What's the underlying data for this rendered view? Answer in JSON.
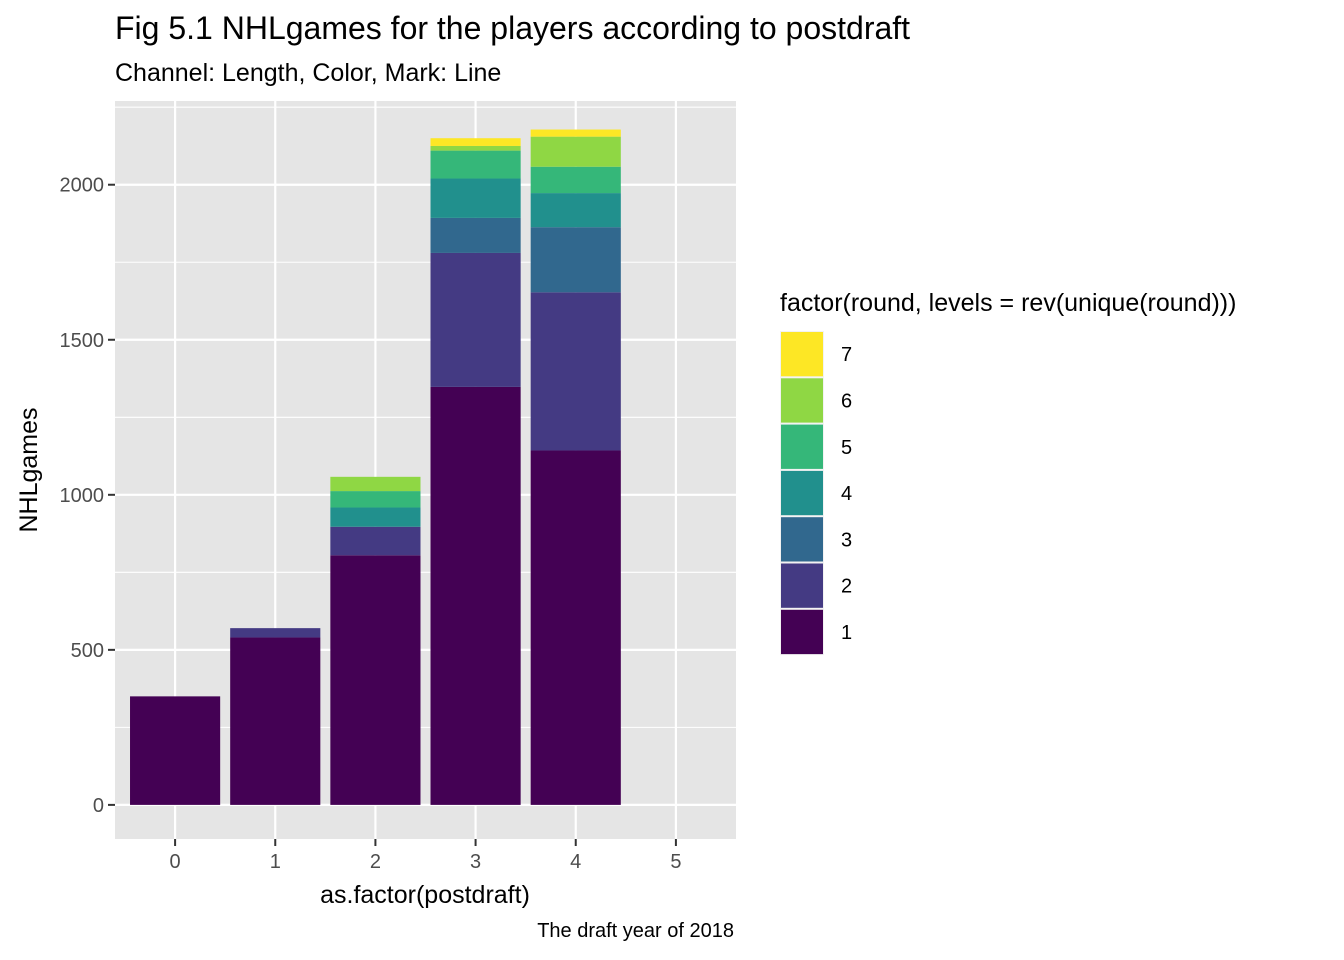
{
  "chart_data": {
    "type": "bar",
    "stacked": true,
    "title": "Fig 5.1 NHLgames for the players according to postdraft",
    "subtitle": "Channel: Length, Color, Mark: Line",
    "caption": "The draft year of 2018",
    "xlabel": "as.factor(postdraft)",
    "ylabel": "NHLgames",
    "categories": [
      "0",
      "1",
      "2",
      "3",
      "4",
      "5"
    ],
    "ylim": [
      -110,
      2270
    ],
    "yticks": [
      0,
      500,
      1000,
      1500,
      2000
    ],
    "grid": true,
    "panel_background": "#E5E5E5",
    "grid_color": "#FFFFFF",
    "legend": {
      "title": "factor(round, levels = rev(unique(round)))",
      "position": "right",
      "entries": [
        "7",
        "6",
        "5",
        "4",
        "3",
        "2",
        "1"
      ]
    },
    "series": [
      {
        "name": "1",
        "color": "#440154",
        "values": [
          350,
          540,
          805,
          1348,
          1143,
          0
        ]
      },
      {
        "name": "2",
        "color": "#443A83",
        "values": [
          0,
          30,
          92,
          432,
          510,
          0
        ]
      },
      {
        "name": "3",
        "color": "#31688E",
        "values": [
          0,
          0,
          0,
          113,
          210,
          0
        ]
      },
      {
        "name": "4",
        "color": "#21908D",
        "values": [
          0,
          0,
          62,
          127,
          110,
          0
        ]
      },
      {
        "name": "5",
        "color": "#35B779",
        "values": [
          0,
          0,
          53,
          90,
          85,
          0
        ]
      },
      {
        "name": "6",
        "color": "#8FD744",
        "values": [
          0,
          0,
          46,
          15,
          97,
          0
        ]
      },
      {
        "name": "7",
        "color": "#FDE725",
        "values": [
          0,
          0,
          0,
          25,
          23,
          0
        ]
      }
    ]
  }
}
